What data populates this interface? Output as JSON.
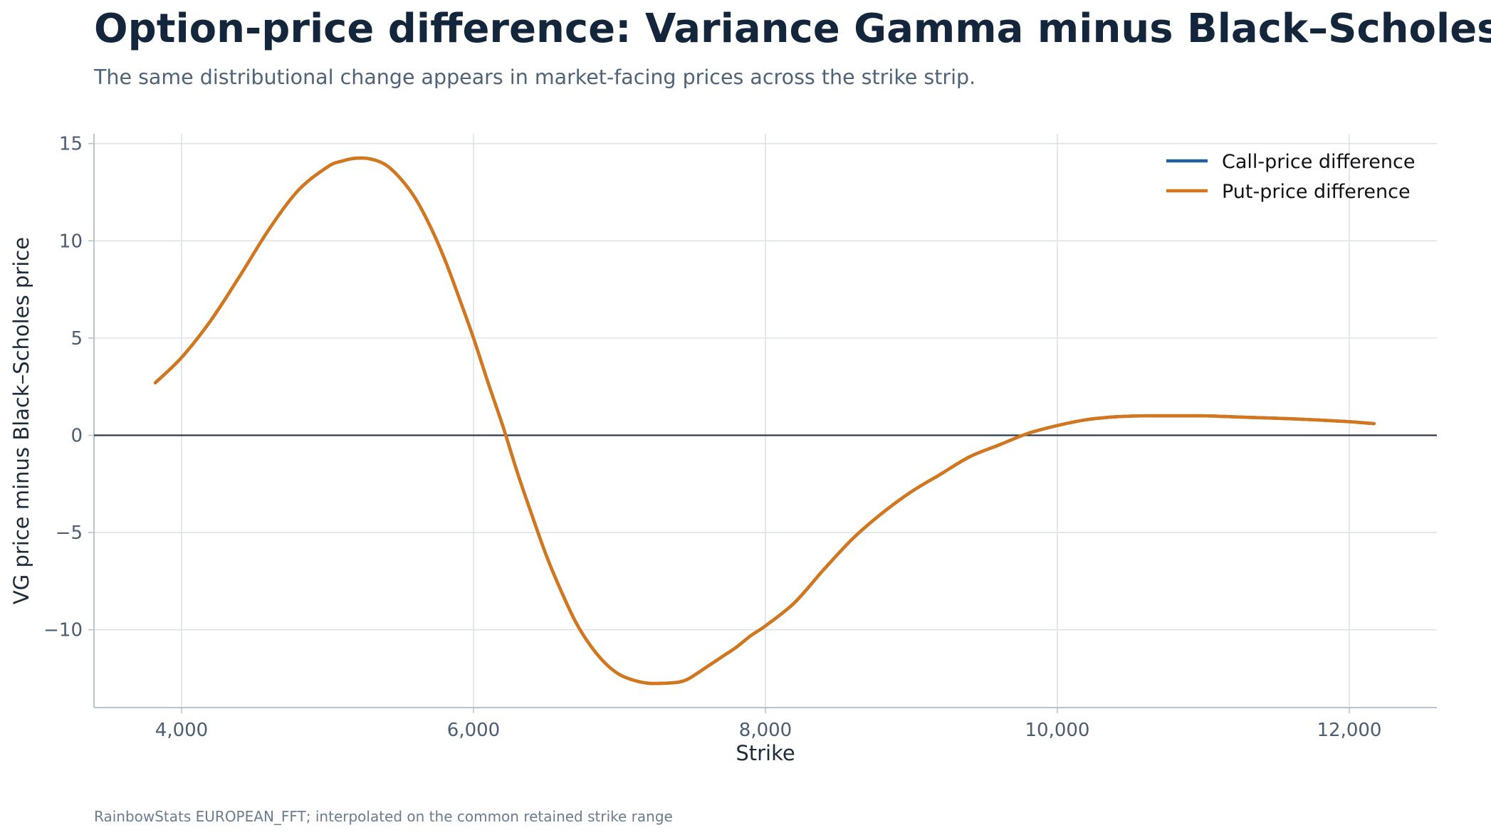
{
  "title": "Option-price difference: Variance Gamma minus Black–Scholes",
  "subtitle": "The same distributional change appears in market-facing prices across the strike strip.",
  "source": "RainbowStats EUROPEAN_FFT; interpolated on the common retained strike range",
  "colors": {
    "call": "#1f5f9e",
    "put": "#d4761a",
    "grid": "#dde3ea",
    "spine": "#b8c4d0",
    "zero_line": "#2c3b4b"
  },
  "chart_data": {
    "type": "line",
    "title": "Option-price difference: Variance Gamma minus Black–Scholes",
    "xlabel": "Strike",
    "ylabel": "VG price minus Black–Scholes price",
    "xlim": [
      3400,
      12600
    ],
    "ylim": [
      -14,
      15.5
    ],
    "x_ticks": [
      4000,
      6000,
      8000,
      10000,
      12000
    ],
    "x_tick_labels": [
      "4,000",
      "6,000",
      "8,000",
      "10,000",
      "12,000"
    ],
    "y_ticks": [
      -10,
      -5,
      0,
      5,
      10,
      15
    ],
    "y_tick_labels": [
      "−10",
      "−5",
      "0",
      "5",
      "10",
      "15"
    ],
    "grid": true,
    "legend_position": "top-right",
    "reference_line": 0,
    "series": [
      {
        "name": "Call-price difference",
        "x": [
          3820,
          4000,
          4200,
          4400,
          4600,
          4800,
          5000,
          5100,
          5200,
          5300,
          5400,
          5500,
          5600,
          5700,
          5800,
          5900,
          6000,
          6100,
          6200,
          6300,
          6400,
          6500,
          6600,
          6700,
          6800,
          6900,
          7000,
          7100,
          7200,
          7300,
          7400,
          7450,
          7500,
          7600,
          7700,
          7800,
          7900,
          8000,
          8200,
          8400,
          8600,
          8800,
          9000,
          9200,
          9400,
          9600,
          9800,
          10000,
          10200,
          10400,
          10600,
          10800,
          11000,
          11200,
          11400,
          11600,
          11800,
          12000,
          12170
        ],
        "y": [
          2.7,
          4.0,
          5.9,
          8.2,
          10.6,
          12.6,
          13.8,
          14.1,
          14.25,
          14.2,
          13.9,
          13.2,
          12.2,
          10.8,
          9.1,
          7.1,
          5.0,
          2.7,
          0.5,
          -1.9,
          -4.1,
          -6.2,
          -8.0,
          -9.6,
          -10.8,
          -11.7,
          -12.3,
          -12.6,
          -12.75,
          -12.75,
          -12.7,
          -12.6,
          -12.4,
          -11.9,
          -11.4,
          -10.9,
          -10.3,
          -9.8,
          -8.6,
          -6.9,
          -5.3,
          -4.0,
          -2.9,
          -2.0,
          -1.1,
          -0.5,
          0.1,
          0.5,
          0.8,
          0.95,
          1.0,
          1.0,
          1.0,
          0.95,
          0.9,
          0.85,
          0.78,
          0.7,
          0.6
        ]
      },
      {
        "name": "Put-price difference",
        "x": [
          3820,
          4000,
          4200,
          4400,
          4600,
          4800,
          5000,
          5100,
          5200,
          5300,
          5400,
          5500,
          5600,
          5700,
          5800,
          5900,
          6000,
          6100,
          6200,
          6300,
          6400,
          6500,
          6600,
          6700,
          6800,
          6900,
          7000,
          7100,
          7200,
          7300,
          7400,
          7450,
          7500,
          7600,
          7700,
          7800,
          7900,
          8000,
          8200,
          8400,
          8600,
          8800,
          9000,
          9200,
          9400,
          9600,
          9800,
          10000,
          10200,
          10400,
          10600,
          10800,
          11000,
          11200,
          11400,
          11600,
          11800,
          12000,
          12170
        ],
        "y": [
          2.7,
          4.0,
          5.9,
          8.2,
          10.6,
          12.6,
          13.8,
          14.1,
          14.25,
          14.2,
          13.9,
          13.2,
          12.2,
          10.8,
          9.1,
          7.1,
          5.0,
          2.7,
          0.5,
          -1.9,
          -4.1,
          -6.2,
          -8.0,
          -9.6,
          -10.8,
          -11.7,
          -12.3,
          -12.6,
          -12.75,
          -12.75,
          -12.7,
          -12.6,
          -12.4,
          -11.9,
          -11.4,
          -10.9,
          -10.3,
          -9.8,
          -8.6,
          -6.9,
          -5.3,
          -4.0,
          -2.9,
          -2.0,
          -1.1,
          -0.5,
          0.1,
          0.5,
          0.8,
          0.95,
          1.0,
          1.0,
          1.0,
          0.95,
          0.9,
          0.85,
          0.78,
          0.7,
          0.6
        ]
      }
    ]
  }
}
